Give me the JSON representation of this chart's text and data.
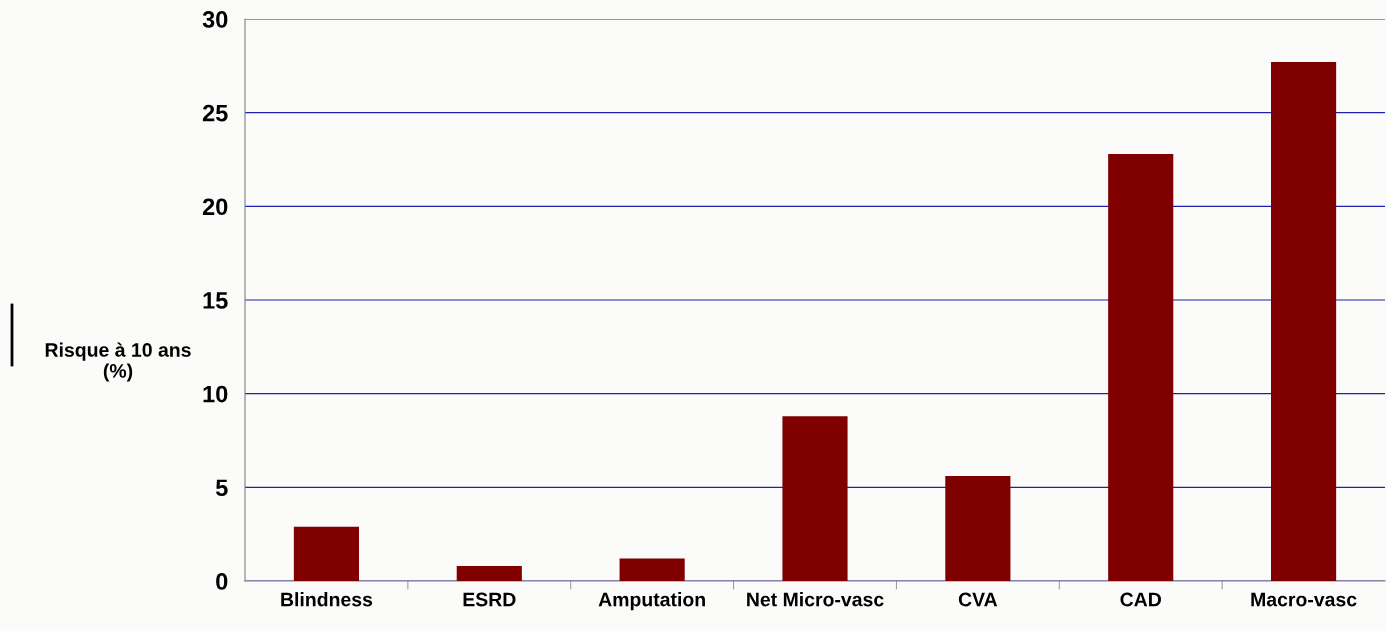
{
  "chart_data": {
    "type": "bar",
    "ylabel": "Risque à 10 ans\n(%)",
    "categories": [
      "Blindness",
      "ESRD",
      "Amputation",
      "Net Micro-vasc",
      "CVA",
      "CAD",
      "Macro-vasc"
    ],
    "values": [
      2.9,
      0.8,
      1.2,
      8.8,
      5.6,
      22.8,
      27.7
    ],
    "color": "#800000",
    "ylim": [
      0,
      30
    ],
    "yticks": [
      0,
      5,
      10,
      15,
      20,
      25,
      30
    ],
    "grid": "y"
  }
}
